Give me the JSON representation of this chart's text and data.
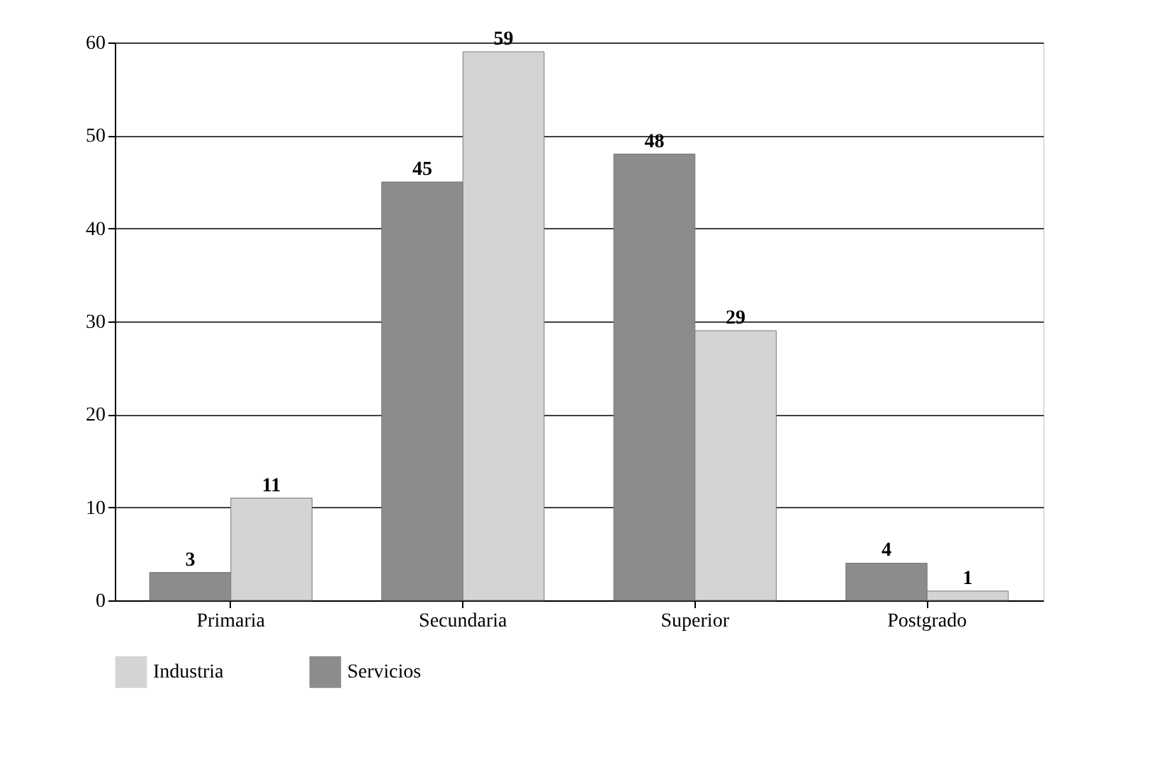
{
  "chart_data": {
    "type": "bar",
    "categories": [
      "Primaria",
      "Secundaria",
      "Superior",
      "Postgrado"
    ],
    "series": [
      {
        "name": "Servicios",
        "color": "#8c8c8c",
        "values": [
          3,
          45,
          48,
          4
        ]
      },
      {
        "name": "Industria",
        "color": "#d4d4d4",
        "values": [
          11,
          59,
          29,
          1
        ]
      }
    ],
    "ylim": [
      0,
      60
    ],
    "yticks": [
      0,
      10,
      20,
      30,
      40,
      50,
      60
    ],
    "grid": "y",
    "legend": "bottom",
    "data_labels": true
  }
}
